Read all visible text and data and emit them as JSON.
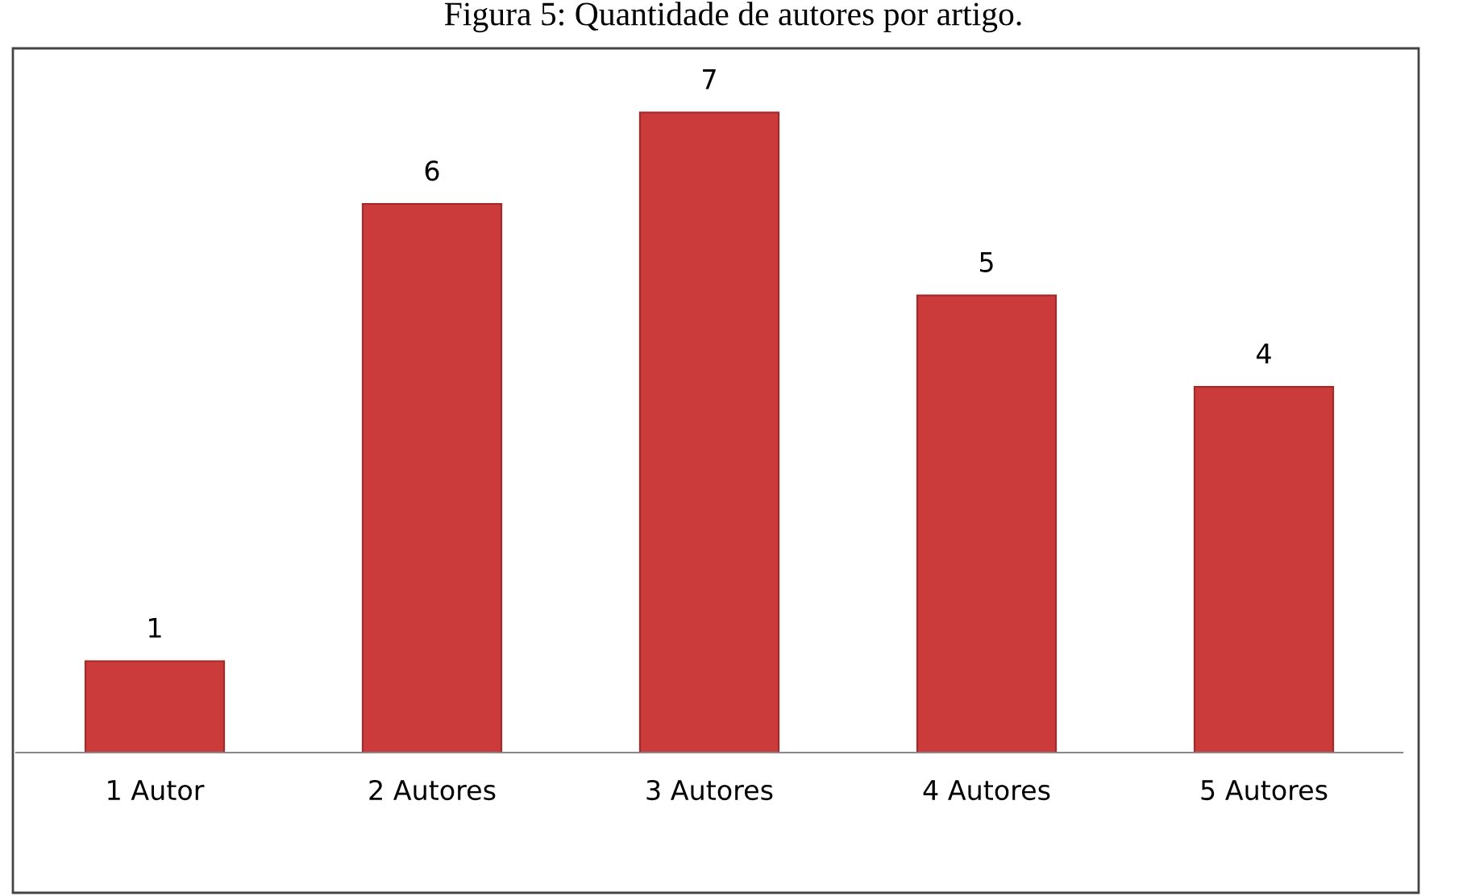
{
  "chart_data": {
    "type": "bar",
    "title": "Figura 5: Quantidade de autores por artigo.",
    "categories": [
      "1 Autor",
      "2 Autores",
      "3 Autores",
      "4 Autores",
      "5 Autores"
    ],
    "values": [
      1,
      6,
      7,
      5,
      4
    ],
    "color": "#cc3b3b",
    "data_labels": true,
    "grid": false,
    "legend": false
  }
}
